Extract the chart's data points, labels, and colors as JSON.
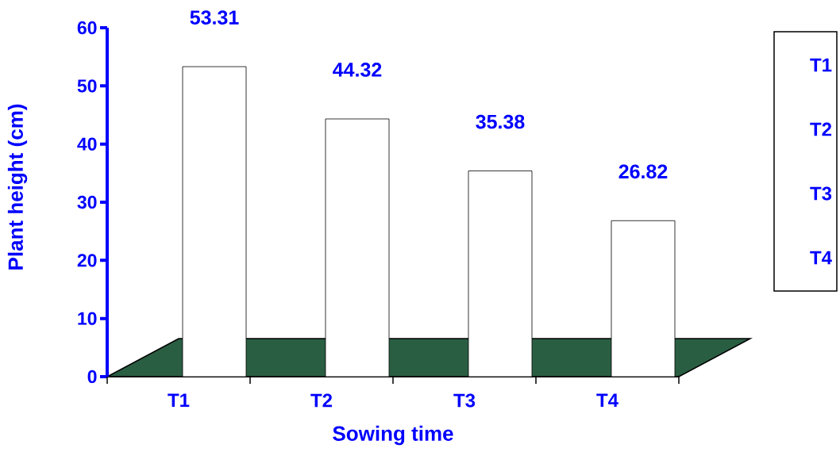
{
  "chart_data": {
    "type": "bar",
    "xlabel": "Sowing time",
    "ylabel": "Plant height (cm)",
    "categories": [
      "T1",
      "T2",
      "T3",
      "T4"
    ],
    "values": [
      53.31,
      44.32,
      35.38,
      26.82
    ],
    "colors": [
      "#ffffff",
      "#ffffff",
      "#ffffff",
      "#ffffff"
    ],
    "ylim": [
      0,
      60
    ],
    "yticks": [
      0,
      10,
      20,
      30,
      40,
      50,
      60
    ],
    "data_labels": true
  }
}
